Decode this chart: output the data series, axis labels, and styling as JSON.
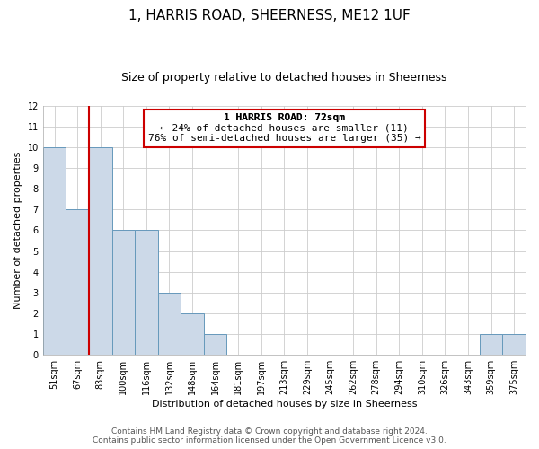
{
  "title": "1, HARRIS ROAD, SHEERNESS, ME12 1UF",
  "subtitle": "Size of property relative to detached houses in Sheerness",
  "xlabel": "Distribution of detached houses by size in Sheerness",
  "ylabel": "Number of detached properties",
  "bar_labels": [
    "51sqm",
    "67sqm",
    "83sqm",
    "100sqm",
    "116sqm",
    "132sqm",
    "148sqm",
    "164sqm",
    "181sqm",
    "197sqm",
    "213sqm",
    "229sqm",
    "245sqm",
    "262sqm",
    "278sqm",
    "294sqm",
    "310sqm",
    "326sqm",
    "343sqm",
    "359sqm",
    "375sqm"
  ],
  "bar_values": [
    10,
    7,
    10,
    6,
    6,
    3,
    2,
    1,
    0,
    0,
    0,
    0,
    0,
    0,
    0,
    0,
    0,
    0,
    0,
    1,
    1
  ],
  "bar_color": "#ccd9e8",
  "bar_edge_color": "#6699bb",
  "reference_line_index": 1.5,
  "reference_line_color": "#cc0000",
  "ylim": [
    0,
    12
  ],
  "yticks": [
    0,
    1,
    2,
    3,
    4,
    5,
    6,
    7,
    8,
    9,
    10,
    11,
    12
  ],
  "annotation_title": "1 HARRIS ROAD: 72sqm",
  "annotation_line1": "← 24% of detached houses are smaller (11)",
  "annotation_line2": "76% of semi-detached houses are larger (35) →",
  "annotation_box_color": "#ffffff",
  "annotation_box_edge": "#cc0000",
  "footer_line1": "Contains HM Land Registry data © Crown copyright and database right 2024.",
  "footer_line2": "Contains public sector information licensed under the Open Government Licence v3.0.",
  "grid_color": "#cccccc",
  "background_color": "#ffffff",
  "title_fontsize": 11,
  "subtitle_fontsize": 9,
  "label_fontsize": 8,
  "tick_fontsize": 7,
  "footer_fontsize": 6.5
}
